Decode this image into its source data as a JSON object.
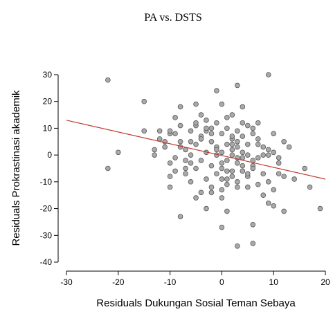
{
  "chart_data": {
    "type": "scatter",
    "title": "PA vs. DSTS",
    "x_label": "Residuals Dukungan Sosial Teman Sebaya",
    "y_label": "Residuals Prokrastinasi akademik",
    "xlim": [
      -30,
      20
    ],
    "ylim": [
      -40,
      30
    ],
    "xticks": [
      -30,
      -20,
      -10,
      0,
      10,
      20
    ],
    "yticks": [
      -40,
      -30,
      -20,
      -10,
      0,
      10,
      20,
      30
    ],
    "series": [
      {
        "type": "scatter",
        "color": "#a9a9a9",
        "x": [
          -22,
          -22,
          -20,
          -15,
          -15,
          -13,
          -13,
          -12,
          -11,
          -10,
          -10,
          -10,
          -10,
          -9,
          -8,
          -8,
          -7,
          -6,
          -6,
          -5,
          -5,
          -4,
          -3,
          -2,
          -1,
          0,
          0,
          1,
          2,
          3,
          3,
          5,
          6,
          6,
          9,
          9,
          10,
          12,
          13,
          16,
          17,
          19,
          14,
          11,
          7,
          -12,
          -11,
          -9,
          -9,
          -8,
          -7,
          -7,
          -6,
          -5,
          -5,
          -4,
          -4,
          -3,
          -3,
          -3,
          -2,
          -2,
          -2,
          -1,
          -1,
          -1,
          0,
          0,
          0,
          0,
          1,
          1,
          1,
          1,
          2,
          2,
          2,
          2,
          3,
          3,
          3,
          3,
          4,
          4,
          4,
          4,
          5,
          5,
          5,
          6,
          6,
          6,
          7,
          7,
          7,
          8,
          8,
          8,
          9,
          9,
          10,
          10,
          11,
          11,
          12,
          -9,
          -8,
          -6,
          -4,
          -2,
          -1,
          0,
          1,
          2,
          3,
          4,
          5,
          6,
          -7,
          -3,
          1,
          2,
          4,
          -5,
          -1,
          3,
          5,
          8,
          -6,
          -2,
          0,
          2,
          6,
          10,
          -4,
          4,
          7,
          -8,
          -3,
          1,
          3,
          9,
          12,
          -10,
          -5,
          0
        ],
        "values": [
          28,
          -5,
          1,
          20,
          9,
          2,
          0,
          9,
          5,
          8,
          -3,
          -8,
          -12,
          14,
          18,
          -23,
          -7,
          9,
          -3,
          -16,
          19,
          15,
          -20,
          -12,
          24,
          -27,
          19,
          -21,
          0,
          26,
          -34,
          -12,
          -26,
          -33,
          30,
          -18,
          -19,
          -21,
          3,
          -5,
          -12,
          -20,
          -9,
          -7,
          12,
          6,
          3,
          8,
          -1,
          5,
          2,
          -5,
          0,
          4,
          11,
          -2,
          7,
          1,
          13,
          -9,
          5,
          -4,
          10,
          3,
          -7,
          12,
          1,
          8,
          -5,
          -13,
          4,
          -2,
          10,
          -9,
          6,
          -6,
          15,
          2,
          9,
          -3,
          5,
          -10,
          1,
          12,
          -6,
          7,
          0,
          -8,
          4,
          10,
          -4,
          8,
          -1,
          -11,
          6,
          0,
          -7,
          3,
          -10,
          2,
          -13,
          8,
          -3,
          -1,
          5,
          -6,
          3,
          -10,
          6,
          -14,
          2,
          -3,
          14,
          -8,
          -1,
          18,
          11,
          -5,
          -2,
          9,
          -11,
          4,
          -4,
          12,
          0,
          3,
          -7,
          -15,
          5,
          8,
          -9,
          7,
          -2,
          1,
          -14,
          -1,
          4,
          11,
          10,
          -6,
          -12,
          0,
          -8,
          9,
          -5,
          -16
        ]
      },
      {
        "type": "line",
        "color": "#c0392b",
        "x": [
          -30,
          20
        ],
        "values": [
          13,
          -9
        ]
      }
    ]
  }
}
